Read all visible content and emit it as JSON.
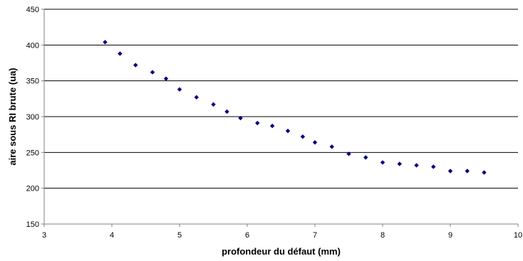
{
  "chart_data": {
    "type": "scatter",
    "title": "",
    "xlabel": "profondeur du défaut (mm)",
    "ylabel": "aire sous RI brute (ua)",
    "xlim": [
      3,
      10
    ],
    "ylim": [
      150,
      450
    ],
    "xticks": [
      3,
      4,
      5,
      6,
      7,
      8,
      9,
      10
    ],
    "yticks": [
      150,
      200,
      250,
      300,
      350,
      400,
      450
    ],
    "grid": "horizontal",
    "legend": "none",
    "marker": "diamond",
    "colors": {
      "marker": "#00007f",
      "grid": "#000000",
      "axis": "#808080"
    },
    "points": [
      {
        "x": 3.9,
        "y": 404
      },
      {
        "x": 4.12,
        "y": 388
      },
      {
        "x": 4.35,
        "y": 372
      },
      {
        "x": 4.6,
        "y": 362
      },
      {
        "x": 4.8,
        "y": 353
      },
      {
        "x": 5.0,
        "y": 338
      },
      {
        "x": 5.25,
        "y": 327
      },
      {
        "x": 5.5,
        "y": 317
      },
      {
        "x": 5.7,
        "y": 307
      },
      {
        "x": 5.9,
        "y": 298
      },
      {
        "x": 6.15,
        "y": 291
      },
      {
        "x": 6.37,
        "y": 287
      },
      {
        "x": 6.6,
        "y": 280
      },
      {
        "x": 6.82,
        "y": 272
      },
      {
        "x": 7.0,
        "y": 264
      },
      {
        "x": 7.25,
        "y": 258
      },
      {
        "x": 7.5,
        "y": 248
      },
      {
        "x": 7.75,
        "y": 243
      },
      {
        "x": 8.0,
        "y": 236
      },
      {
        "x": 8.25,
        "y": 234
      },
      {
        "x": 8.5,
        "y": 232
      },
      {
        "x": 8.75,
        "y": 230
      },
      {
        "x": 9.0,
        "y": 224
      },
      {
        "x": 9.25,
        "y": 224
      },
      {
        "x": 9.5,
        "y": 222
      }
    ]
  }
}
